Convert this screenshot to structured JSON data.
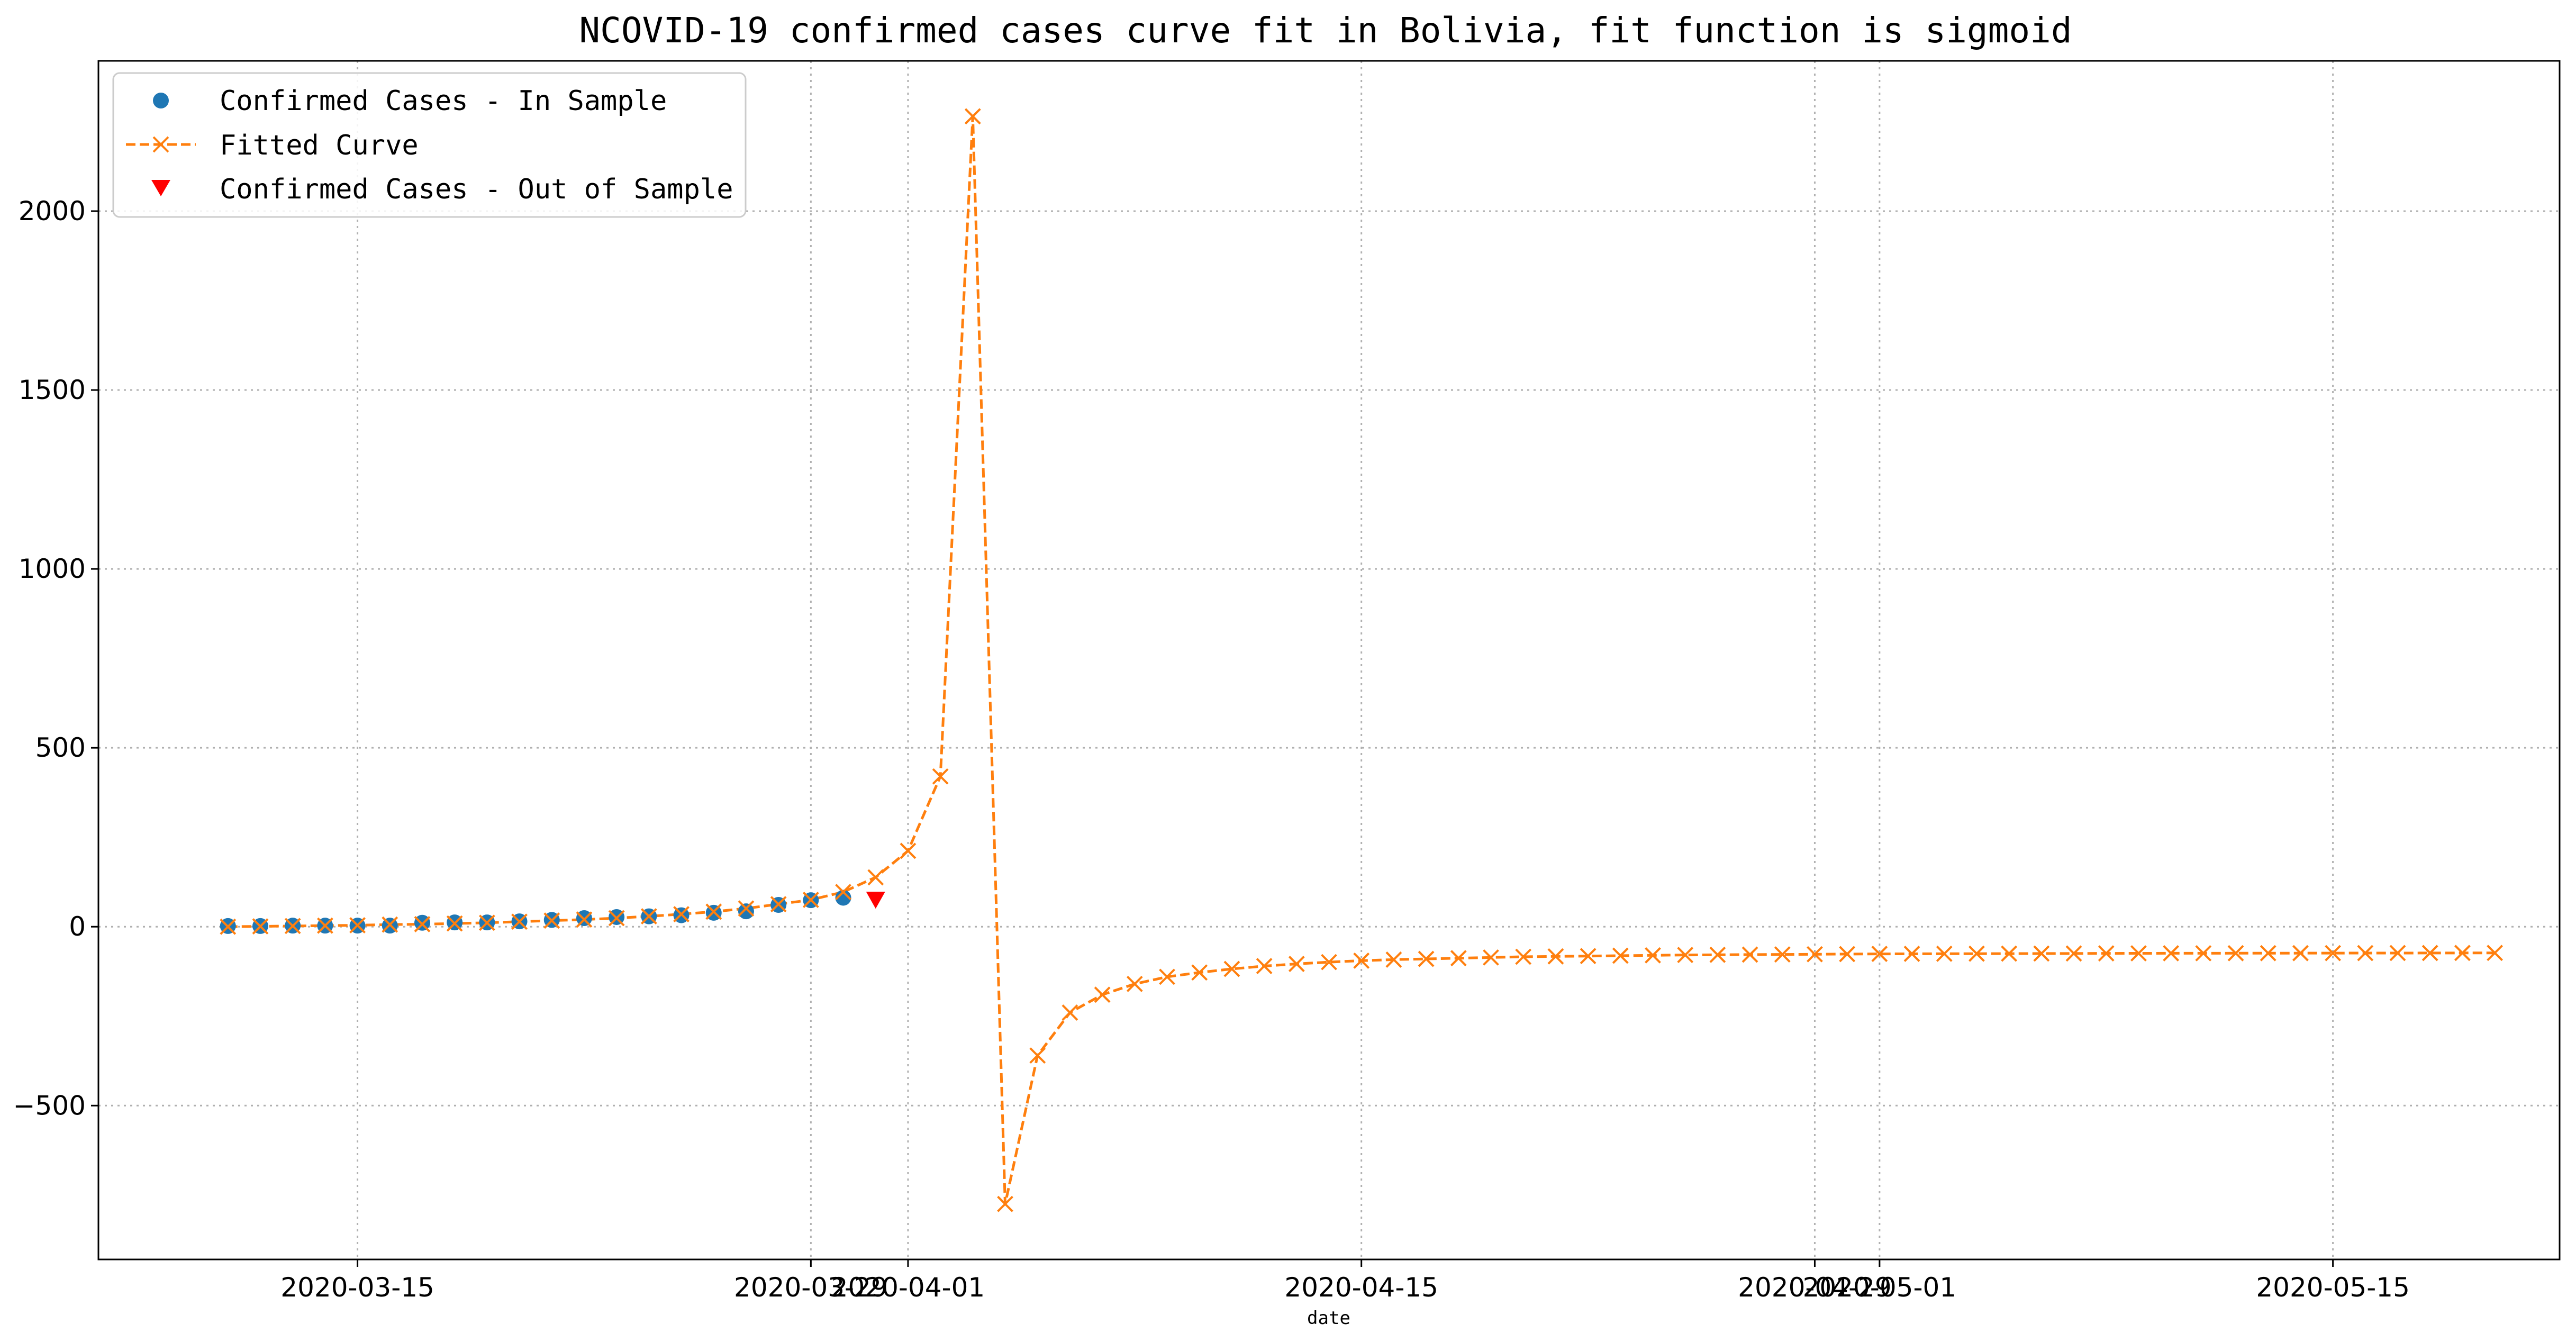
{
  "chart_data": {
    "type": "line",
    "title": "NCOVID-19 confirmed cases curve fit in Bolivia, fit function is sigmoid",
    "xlabel": "date",
    "ylabel": "",
    "x_type": "date",
    "xlim": [
      "2020-03-07",
      "2020-05-22"
    ],
    "ylim": [
      -930,
      2420
    ],
    "grid": true,
    "legend_position": "top-left",
    "x_tick_labels": [
      {
        "date": "2020-03-15",
        "label": "2020-03-15"
      },
      {
        "date": "2020-03-29",
        "label": "2020-03-29"
      },
      {
        "date": "2020-04-01",
        "label": "2020-04-01"
      },
      {
        "date": "2020-04-15",
        "label": "2020-04-15"
      },
      {
        "date": "2020-04-29",
        "label": "2020-04-29"
      },
      {
        "date": "2020-05-01",
        "label": "2020-05-01"
      },
      {
        "date": "2020-05-15",
        "label": "2020-05-15"
      }
    ],
    "y_ticks": [
      -500,
      0,
      500,
      1000,
      1500,
      2000
    ],
    "y_tick_labels": [
      "−500",
      "0",
      "500",
      "1000",
      "1500",
      "2000"
    ],
    "series": [
      {
        "name": "Confirmed Cases - In Sample",
        "style": "scatter",
        "marker": "circle",
        "color": "#1f77b4",
        "x": [
          "2020-03-11",
          "2020-03-12",
          "2020-03-13",
          "2020-03-14",
          "2020-03-15",
          "2020-03-16",
          "2020-03-17",
          "2020-03-18",
          "2020-03-19",
          "2020-03-20",
          "2020-03-21",
          "2020-03-22",
          "2020-03-23",
          "2020-03-24",
          "2020-03-25",
          "2020-03-26",
          "2020-03-27",
          "2020-03-28",
          "2020-03-29",
          "2020-03-30"
        ],
        "y": [
          2,
          2,
          3,
          3,
          3,
          3,
          11,
          12,
          12,
          15,
          19,
          24,
          27,
          29,
          32,
          39,
          43,
          61,
          74,
          81
        ]
      },
      {
        "name": "Fitted Curve",
        "style": "dashed-line",
        "marker": "x",
        "color": "#ff7f0e",
        "x": [
          "2020-03-11",
          "2020-03-12",
          "2020-03-13",
          "2020-03-14",
          "2020-03-15",
          "2020-03-16",
          "2020-03-17",
          "2020-03-18",
          "2020-03-19",
          "2020-03-20",
          "2020-03-21",
          "2020-03-22",
          "2020-03-23",
          "2020-03-24",
          "2020-03-25",
          "2020-03-26",
          "2020-03-27",
          "2020-03-28",
          "2020-03-29",
          "2020-03-30",
          "2020-03-31",
          "2020-04-01",
          "2020-04-02",
          "2020-04-03",
          "2020-04-04",
          "2020-04-05",
          "2020-04-06",
          "2020-04-07",
          "2020-04-08",
          "2020-04-09",
          "2020-04-10",
          "2020-04-11",
          "2020-04-12",
          "2020-04-13",
          "2020-04-14",
          "2020-04-15",
          "2020-04-16",
          "2020-04-17",
          "2020-04-18",
          "2020-04-19",
          "2020-04-20",
          "2020-04-21",
          "2020-04-22",
          "2020-04-23",
          "2020-04-24",
          "2020-04-25",
          "2020-04-26",
          "2020-04-27",
          "2020-04-28",
          "2020-04-29",
          "2020-04-30",
          "2020-05-01",
          "2020-05-02",
          "2020-05-03",
          "2020-05-04",
          "2020-05-05",
          "2020-05-06",
          "2020-05-07",
          "2020-05-08",
          "2020-05-09",
          "2020-05-10",
          "2020-05-11",
          "2020-05-12",
          "2020-05-13",
          "2020-05-14",
          "2020-05-15",
          "2020-05-16",
          "2020-05-17",
          "2020-05-18",
          "2020-05-19",
          "2020-05-20"
        ],
        "y": [
          0,
          1,
          2,
          3,
          4,
          6,
          7,
          9,
          11,
          14,
          17,
          20,
          24,
          29,
          35,
          42,
          51,
          63,
          75,
          97,
          138,
          212,
          420,
          2265,
          -775,
          -360,
          -240,
          -190,
          -160,
          -140,
          -128,
          -118,
          -110,
          -104,
          -99,
          -95,
          -92,
          -90,
          -88,
          -86,
          -84,
          -83,
          -82,
          -81,
          -80,
          -79,
          -78.5,
          -78,
          -77.5,
          -77,
          -76.5,
          -76,
          -75.8,
          -75.6,
          -75.4,
          -75.2,
          -75,
          -74.8,
          -74.6,
          -74.4,
          -74.3,
          -74.2,
          -74.1,
          -74,
          -73.9,
          -73.8,
          -73.7,
          -73.6,
          -73.5,
          -73.4,
          -73.3
        ]
      },
      {
        "name": "Confirmed Cases - Out of Sample",
        "style": "scatter",
        "marker": "triangle-down",
        "color": "#ff0000",
        "x": [
          "2020-03-31"
        ],
        "y": [
          74
        ]
      }
    ]
  }
}
